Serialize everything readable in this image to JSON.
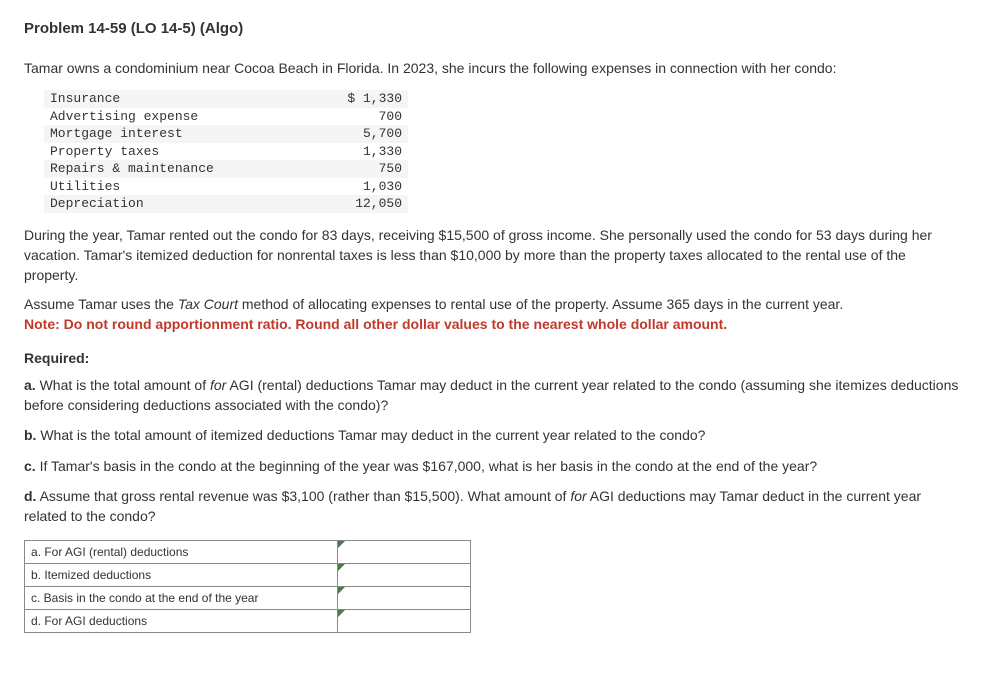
{
  "title": "Problem 14-59 (LO 14-5) (Algo)",
  "intro": "Tamar owns a condominium near Cocoa Beach in Florida. In 2023, she incurs the following expenses in connection with her condo:",
  "expenses": [
    {
      "label": "Insurance",
      "amount": "$ 1,330"
    },
    {
      "label": "Advertising expense",
      "amount": "700"
    },
    {
      "label": "Mortgage interest",
      "amount": "5,700"
    },
    {
      "label": "Property taxes",
      "amount": "1,330"
    },
    {
      "label": "Repairs & maintenance",
      "amount": "750"
    },
    {
      "label": "Utilities",
      "amount": "1,030"
    },
    {
      "label": "Depreciation",
      "amount": "12,050"
    }
  ],
  "paragraph_during": "During the year, Tamar rented out the condo for 83 days, receiving $15,500 of gross income. She personally used the condo for 53 days during her vacation. Tamar's itemized deduction for nonrental taxes is less than $10,000 by more than the property taxes allocated to the rental use of the property.",
  "assume_prefix": "Assume Tamar uses the ",
  "assume_italic": "Tax Court",
  "assume_suffix": " method of allocating expenses to rental use of the property. Assume 365 days in the current year.",
  "note_red": "Note: Do not round apportionment ratio. Round all other dollar values to the nearest whole dollar amount.",
  "required_label": "Required:",
  "questions": {
    "a_letter": "a.",
    "a_prefix": " What is the total amount of ",
    "a_italic": "for",
    "a_suffix": " AGI (rental) deductions Tamar may deduct in the current year related to the condo (assuming she itemizes deductions before considering deductions associated with the condo)?",
    "b_letter": "b.",
    "b_text": " What is the total amount of itemized deductions Tamar may deduct in the current year related to the condo?",
    "c_letter": "c.",
    "c_text": " If Tamar's basis in the condo at the beginning of the year was $167,000, what is her basis in the condo at the end of the year?",
    "d_letter": "d.",
    "d_prefix": " Assume that gross rental revenue was $3,100 (rather than $15,500). What amount of ",
    "d_italic": "for",
    "d_suffix": " AGI deductions may Tamar deduct in the current year related to the condo?"
  },
  "answer_rows": {
    "a": "a. For AGI (rental) deductions",
    "b": "b. Itemized deductions",
    "c": "c. Basis in the condo at the end of the year",
    "d": "d. For AGI deductions"
  }
}
